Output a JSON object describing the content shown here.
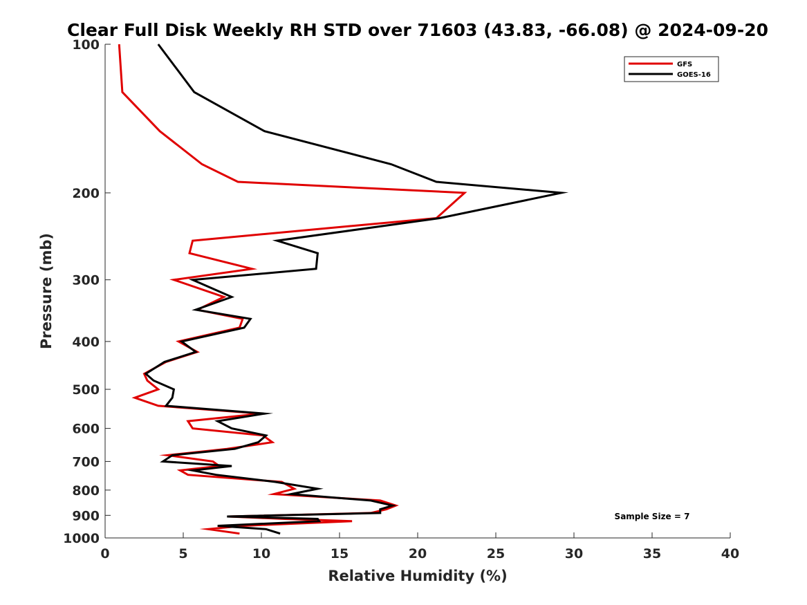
{
  "chart_data": {
    "type": "line",
    "title": "Clear Full Disk Weekly RH STD over 71603 (43.83, -66.08) @ 2024-09-20",
    "xlabel": "Relative Humidity (%)",
    "ylabel": "Pressure (mb)",
    "xlim": [
      0,
      40
    ],
    "ylim": [
      100,
      1000
    ],
    "y_scale": "log",
    "y_reversed": true,
    "x_ticks": [
      0,
      5,
      10,
      15,
      20,
      25,
      30,
      35,
      40
    ],
    "y_ticks": [
      100,
      200,
      300,
      400,
      500,
      600,
      700,
      800,
      900,
      1000
    ],
    "grid": false,
    "legend_position": "top-right",
    "annotation": "Sample Size = 7",
    "series": [
      {
        "name": "GFS",
        "color": "#e00000",
        "points": [
          [
            0.9,
            100
          ],
          [
            1.1,
            125
          ],
          [
            3.5,
            150
          ],
          [
            6.2,
            175
          ],
          [
            8.5,
            190
          ],
          [
            23.0,
            200
          ],
          [
            21.2,
            225
          ],
          [
            5.6,
            250
          ],
          [
            5.4,
            265
          ],
          [
            9.4,
            285
          ],
          [
            4.4,
            300
          ],
          [
            7.6,
            325
          ],
          [
            5.9,
            345
          ],
          [
            8.8,
            360
          ],
          [
            8.6,
            375
          ],
          [
            4.7,
            400
          ],
          [
            5.9,
            420
          ],
          [
            3.9,
            440
          ],
          [
            2.5,
            465
          ],
          [
            2.7,
            480
          ],
          [
            3.4,
            500
          ],
          [
            1.9,
            520
          ],
          [
            3.4,
            540
          ],
          [
            10.0,
            560
          ],
          [
            5.3,
            580
          ],
          [
            5.6,
            600
          ],
          [
            10.1,
            620
          ],
          [
            10.7,
            640
          ],
          [
            7.8,
            660
          ],
          [
            4.0,
            680
          ],
          [
            6.9,
            700
          ],
          [
            7.3,
            715
          ],
          [
            4.8,
            730
          ],
          [
            5.3,
            745
          ],
          [
            11.3,
            770
          ],
          [
            12.1,
            795
          ],
          [
            10.8,
            815
          ],
          [
            17.6,
            840
          ],
          [
            18.6,
            860
          ],
          [
            18.0,
            875
          ],
          [
            17.0,
            890
          ],
          [
            7.9,
            905
          ],
          [
            11.5,
            915
          ],
          [
            15.8,
            925
          ],
          [
            8.8,
            945
          ],
          [
            6.6,
            960
          ],
          [
            8.6,
            980
          ]
        ]
      },
      {
        "name": "GOES-16",
        "color": "#000000",
        "points": [
          [
            3.4,
            100
          ],
          [
            5.7,
            125
          ],
          [
            10.2,
            150
          ],
          [
            18.3,
            175
          ],
          [
            21.2,
            190
          ],
          [
            29.2,
            200
          ],
          [
            21.4,
            225
          ],
          [
            11.0,
            250
          ],
          [
            13.6,
            265
          ],
          [
            13.5,
            285
          ],
          [
            5.6,
            300
          ],
          [
            8.1,
            325
          ],
          [
            5.8,
            345
          ],
          [
            9.3,
            360
          ],
          [
            8.9,
            375
          ],
          [
            4.9,
            400
          ],
          [
            5.8,
            420
          ],
          [
            3.8,
            440
          ],
          [
            2.6,
            465
          ],
          [
            3.1,
            480
          ],
          [
            4.4,
            500
          ],
          [
            4.3,
            520
          ],
          [
            3.9,
            540
          ],
          [
            10.2,
            560
          ],
          [
            7.2,
            580
          ],
          [
            8.1,
            600
          ],
          [
            10.3,
            620
          ],
          [
            9.8,
            640
          ],
          [
            8.3,
            660
          ],
          [
            4.3,
            680
          ],
          [
            3.7,
            700
          ],
          [
            8.1,
            715
          ],
          [
            5.6,
            730
          ],
          [
            7.1,
            745
          ],
          [
            10.9,
            770
          ],
          [
            13.6,
            795
          ],
          [
            11.9,
            815
          ],
          [
            17.0,
            840
          ],
          [
            18.4,
            860
          ],
          [
            17.6,
            875
          ],
          [
            17.6,
            890
          ],
          [
            7.8,
            905
          ],
          [
            13.6,
            915
          ],
          [
            13.7,
            925
          ],
          [
            7.2,
            945
          ],
          [
            10.3,
            960
          ],
          [
            11.2,
            980
          ]
        ]
      }
    ]
  }
}
